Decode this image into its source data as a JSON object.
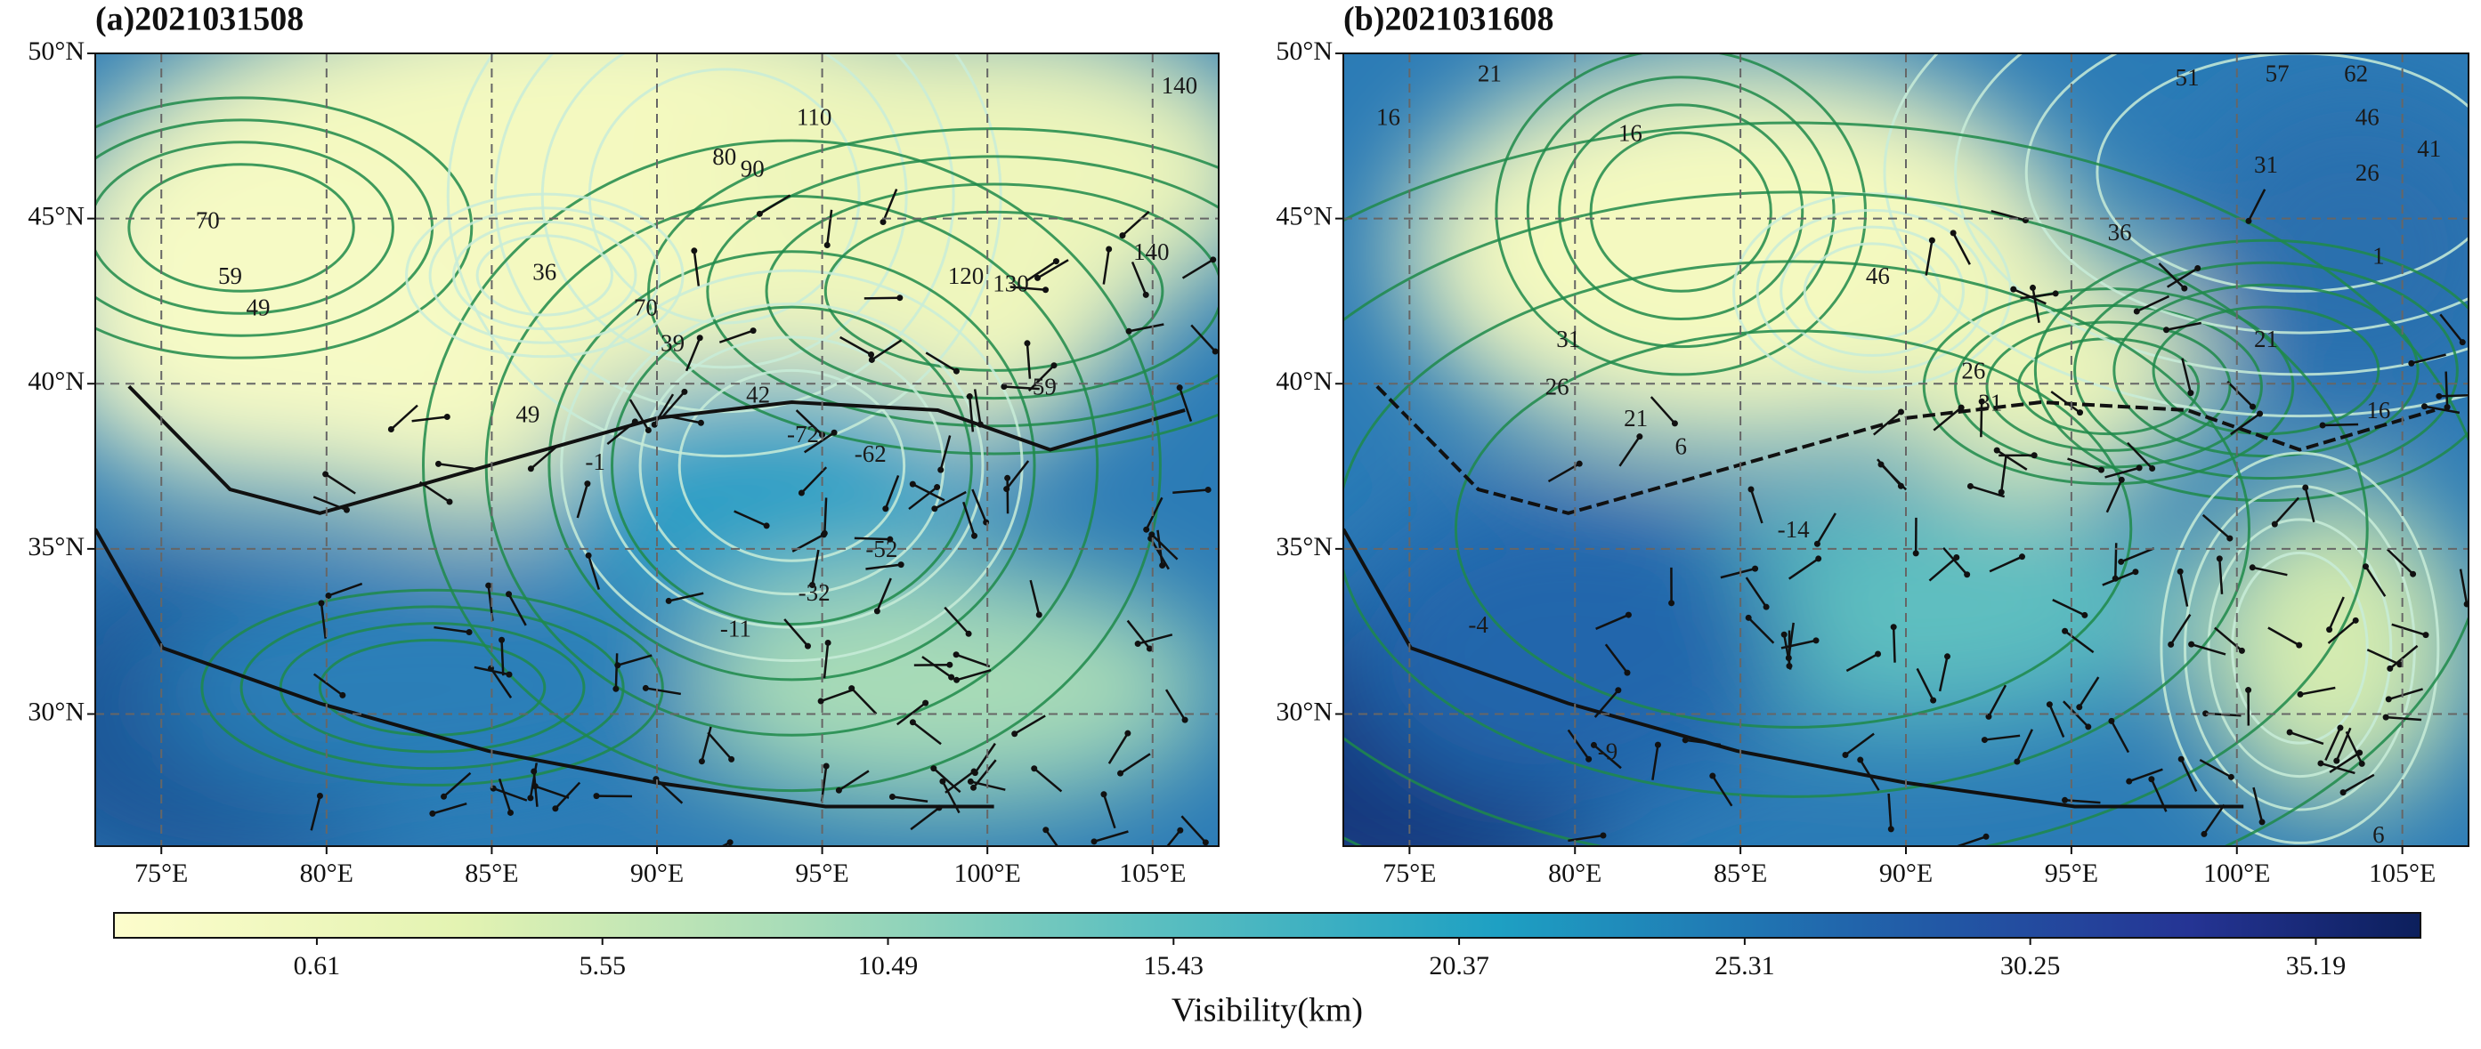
{
  "panels": [
    {
      "title": "(a)2021031508",
      "xlim": [
        73,
        107
      ],
      "ylim": [
        26,
        50
      ],
      "xticks": [
        {
          "value": 75,
          "label": "75°E"
        },
        {
          "value": 80,
          "label": "80°E"
        },
        {
          "value": 85,
          "label": "85°E"
        },
        {
          "value": 90,
          "label": "90°E"
        },
        {
          "value": 95,
          "label": "95°E"
        },
        {
          "value": 100,
          "label": "100°E"
        },
        {
          "value": 105,
          "label": "105°E"
        }
      ],
      "yticks": [
        {
          "value": 30,
          "label": "30°N"
        },
        {
          "value": 35,
          "label": "35°N"
        },
        {
          "value": 40,
          "label": "40°N"
        },
        {
          "value": 45,
          "label": "45°N"
        },
        {
          "value": 50,
          "label": "50°N"
        }
      ],
      "contour_labels": [
        70,
        59,
        49,
        110,
        80,
        90,
        140,
        140,
        120,
        130,
        39,
        42,
        -72,
        -62,
        -52,
        -32,
        -1,
        -11,
        49,
        59,
        70,
        36
      ]
    },
    {
      "title": "(b)2021031608",
      "xlim": [
        73,
        107
      ],
      "ylim": [
        26,
        50
      ],
      "xticks": [
        {
          "value": 75,
          "label": "75°E"
        },
        {
          "value": 80,
          "label": "80°E"
        },
        {
          "value": 85,
          "label": "85°E"
        },
        {
          "value": 90,
          "label": "90°E"
        },
        {
          "value": 95,
          "label": "95°E"
        },
        {
          "value": 100,
          "label": "100°E"
        },
        {
          "value": 105,
          "label": "105°E"
        }
      ],
      "yticks": [
        {
          "value": 30,
          "label": "30°N"
        },
        {
          "value": 35,
          "label": "35°N"
        },
        {
          "value": 40,
          "label": "40°N"
        },
        {
          "value": 45,
          "label": "45°N"
        },
        {
          "value": 50,
          "label": "50°N"
        }
      ],
      "contour_labels": [
        21,
        16,
        51,
        57,
        62,
        46,
        41,
        31,
        26,
        16,
        36,
        31,
        26,
        21,
        6,
        26,
        31,
        -14,
        -4,
        -9,
        1,
        21,
        16,
        6,
        46
      ]
    }
  ],
  "colorbar": {
    "label": "Visibility(km)",
    "lim": [
      -2.9,
      37.0
    ],
    "ticks": [
      0.61,
      5.55,
      10.49,
      15.43,
      20.37,
      25.31,
      30.25,
      35.19
    ]
  }
}
